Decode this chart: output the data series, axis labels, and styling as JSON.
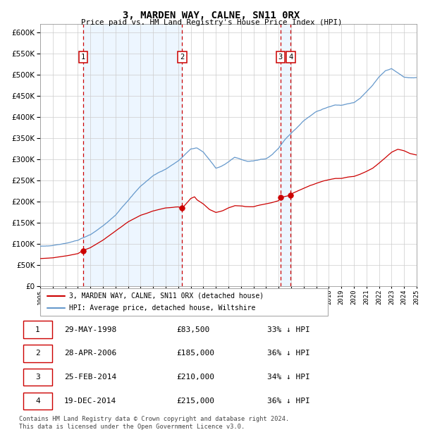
{
  "title": "3, MARDEN WAY, CALNE, SN11 0RX",
  "subtitle": "Price paid vs. HM Land Registry's House Price Index (HPI)",
  "legend_property": "3, MARDEN WAY, CALNE, SN11 0RX (detached house)",
  "legend_hpi": "HPI: Average price, detached house, Wiltshire",
  "footer_line1": "Contains HM Land Registry data © Crown copyright and database right 2024.",
  "footer_line2": "This data is licensed under the Open Government Licence v3.0.",
  "sale_color": "#cc0000",
  "hpi_color": "#6699cc",
  "vline_color": "#cc0000",
  "shade_color": "#ddeeff",
  "grid_color": "#cccccc",
  "ylim": [
    0,
    620000
  ],
  "yticks": [
    0,
    50000,
    100000,
    150000,
    200000,
    250000,
    300000,
    350000,
    400000,
    450000,
    500000,
    550000,
    600000
  ],
  "sale_dates": [
    1998.41,
    2006.32,
    2014.15,
    2014.97
  ],
  "sale_prices": [
    83500,
    185000,
    210000,
    215000
  ],
  "sale_labels": [
    "1",
    "2",
    "3",
    "4"
  ],
  "table_rows": [
    [
      "1",
      "29-MAY-1998",
      "£83,500",
      "33% ↓ HPI"
    ],
    [
      "2",
      "28-APR-2006",
      "£185,000",
      "36% ↓ HPI"
    ],
    [
      "3",
      "25-FEB-2014",
      "£210,000",
      "34% ↓ HPI"
    ],
    [
      "4",
      "19-DEC-2014",
      "£215,000",
      "36% ↓ HPI"
    ]
  ],
  "xmin": 1995,
  "xmax": 2025,
  "hpi_waypoints": [
    [
      1995.0,
      97000
    ],
    [
      1996.0,
      100000
    ],
    [
      1997.0,
      105000
    ],
    [
      1998.0,
      112000
    ],
    [
      1999.0,
      125000
    ],
    [
      2000.0,
      145000
    ],
    [
      2001.0,
      170000
    ],
    [
      2002.0,
      205000
    ],
    [
      2003.0,
      240000
    ],
    [
      2004.0,
      265000
    ],
    [
      2005.0,
      280000
    ],
    [
      2006.0,
      300000
    ],
    [
      2007.0,
      328000
    ],
    [
      2007.5,
      330000
    ],
    [
      2008.0,
      320000
    ],
    [
      2008.5,
      300000
    ],
    [
      2009.0,
      280000
    ],
    [
      2009.5,
      285000
    ],
    [
      2010.0,
      295000
    ],
    [
      2010.5,
      305000
    ],
    [
      2011.0,
      300000
    ],
    [
      2011.5,
      295000
    ],
    [
      2012.0,
      295000
    ],
    [
      2012.5,
      298000
    ],
    [
      2013.0,
      300000
    ],
    [
      2013.5,
      310000
    ],
    [
      2014.0,
      325000
    ],
    [
      2014.5,
      345000
    ],
    [
      2015.0,
      360000
    ],
    [
      2015.5,
      375000
    ],
    [
      2016.0,
      390000
    ],
    [
      2016.5,
      400000
    ],
    [
      2017.0,
      410000
    ],
    [
      2017.5,
      415000
    ],
    [
      2018.0,
      420000
    ],
    [
      2018.5,
      425000
    ],
    [
      2019.0,
      425000
    ],
    [
      2019.5,
      428000
    ],
    [
      2020.0,
      430000
    ],
    [
      2020.5,
      440000
    ],
    [
      2021.0,
      455000
    ],
    [
      2021.5,
      470000
    ],
    [
      2022.0,
      490000
    ],
    [
      2022.5,
      505000
    ],
    [
      2023.0,
      510000
    ],
    [
      2023.5,
      500000
    ],
    [
      2024.0,
      490000
    ],
    [
      2024.5,
      488000
    ],
    [
      2025.0,
      488000
    ]
  ],
  "red_waypoints": [
    [
      1995.0,
      64000
    ],
    [
      1996.0,
      66000
    ],
    [
      1997.0,
      70000
    ],
    [
      1998.0,
      76000
    ],
    [
      1998.41,
      83500
    ],
    [
      1999.0,
      90000
    ],
    [
      2000.0,
      108000
    ],
    [
      2001.0,
      130000
    ],
    [
      2002.0,
      152000
    ],
    [
      2003.0,
      168000
    ],
    [
      2004.0,
      178000
    ],
    [
      2005.0,
      185000
    ],
    [
      2006.0,
      188000
    ],
    [
      2006.32,
      185000
    ],
    [
      2007.0,
      208000
    ],
    [
      2007.3,
      212000
    ],
    [
      2007.5,
      205000
    ],
    [
      2008.0,
      195000
    ],
    [
      2008.5,
      182000
    ],
    [
      2009.0,
      175000
    ],
    [
      2009.5,
      178000
    ],
    [
      2010.0,
      185000
    ],
    [
      2010.5,
      190000
    ],
    [
      2011.0,
      190000
    ],
    [
      2011.5,
      188000
    ],
    [
      2012.0,
      188000
    ],
    [
      2012.5,
      192000
    ],
    [
      2013.0,
      195000
    ],
    [
      2013.5,
      198000
    ],
    [
      2014.0,
      202000
    ],
    [
      2014.15,
      210000
    ],
    [
      2014.97,
      215000
    ],
    [
      2015.0,
      218000
    ],
    [
      2015.5,
      225000
    ],
    [
      2016.0,
      232000
    ],
    [
      2016.5,
      238000
    ],
    [
      2017.0,
      243000
    ],
    [
      2017.5,
      248000
    ],
    [
      2018.0,
      252000
    ],
    [
      2018.5,
      255000
    ],
    [
      2019.0,
      255000
    ],
    [
      2019.5,
      258000
    ],
    [
      2020.0,
      260000
    ],
    [
      2020.5,
      265000
    ],
    [
      2021.0,
      272000
    ],
    [
      2021.5,
      280000
    ],
    [
      2022.0,
      292000
    ],
    [
      2022.5,
      305000
    ],
    [
      2023.0,
      318000
    ],
    [
      2023.5,
      325000
    ],
    [
      2024.0,
      322000
    ],
    [
      2024.5,
      315000
    ],
    [
      2025.0,
      312000
    ]
  ]
}
